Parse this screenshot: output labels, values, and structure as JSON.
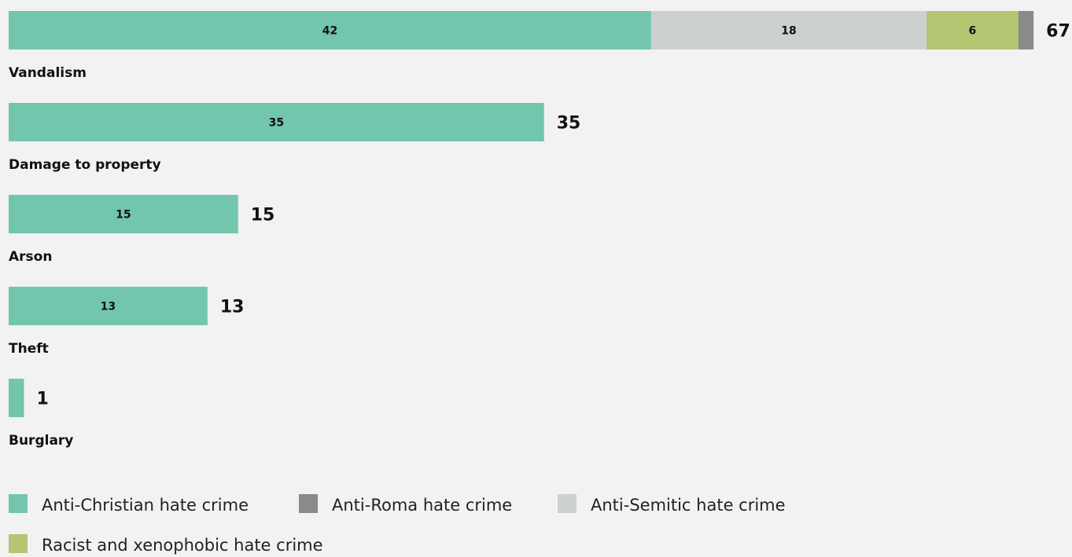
{
  "chart_data": {
    "type": "bar",
    "orientation": "horizontal",
    "stacked": true,
    "categories": [
      "Vandalism",
      "Damage to property",
      "Arson",
      "Theft",
      "Burglary"
    ],
    "series": [
      {
        "name": "Anti-Christian hate crime",
        "color": "#72c6ad",
        "values": [
          42,
          35,
          15,
          13,
          1
        ]
      },
      {
        "name": "Anti-Semitic hate crime",
        "color": "#cdd0d0",
        "values": [
          18,
          0,
          0,
          0,
          0
        ]
      },
      {
        "name": "Racist and xenophobic hate crime",
        "color": "#b5c672",
        "values": [
          6,
          0,
          0,
          0,
          0
        ]
      },
      {
        "name": "Anti-Roma hate crime",
        "color": "#8a8a8a",
        "values": [
          1,
          0,
          0,
          0,
          0
        ]
      }
    ],
    "totals": [
      67,
      35,
      15,
      13,
      1
    ],
    "segment_labels": [
      [
        "42",
        "18",
        "6",
        ""
      ],
      [
        "35"
      ],
      [
        "15"
      ],
      [
        "13"
      ],
      [
        ""
      ]
    ],
    "grid": false,
    "legend_position": "bottom",
    "legend_order": [
      "Anti-Christian hate crime",
      "Anti-Roma hate crime",
      "Anti-Semitic hate crime",
      "Racist and xenophobic hate crime"
    ]
  }
}
